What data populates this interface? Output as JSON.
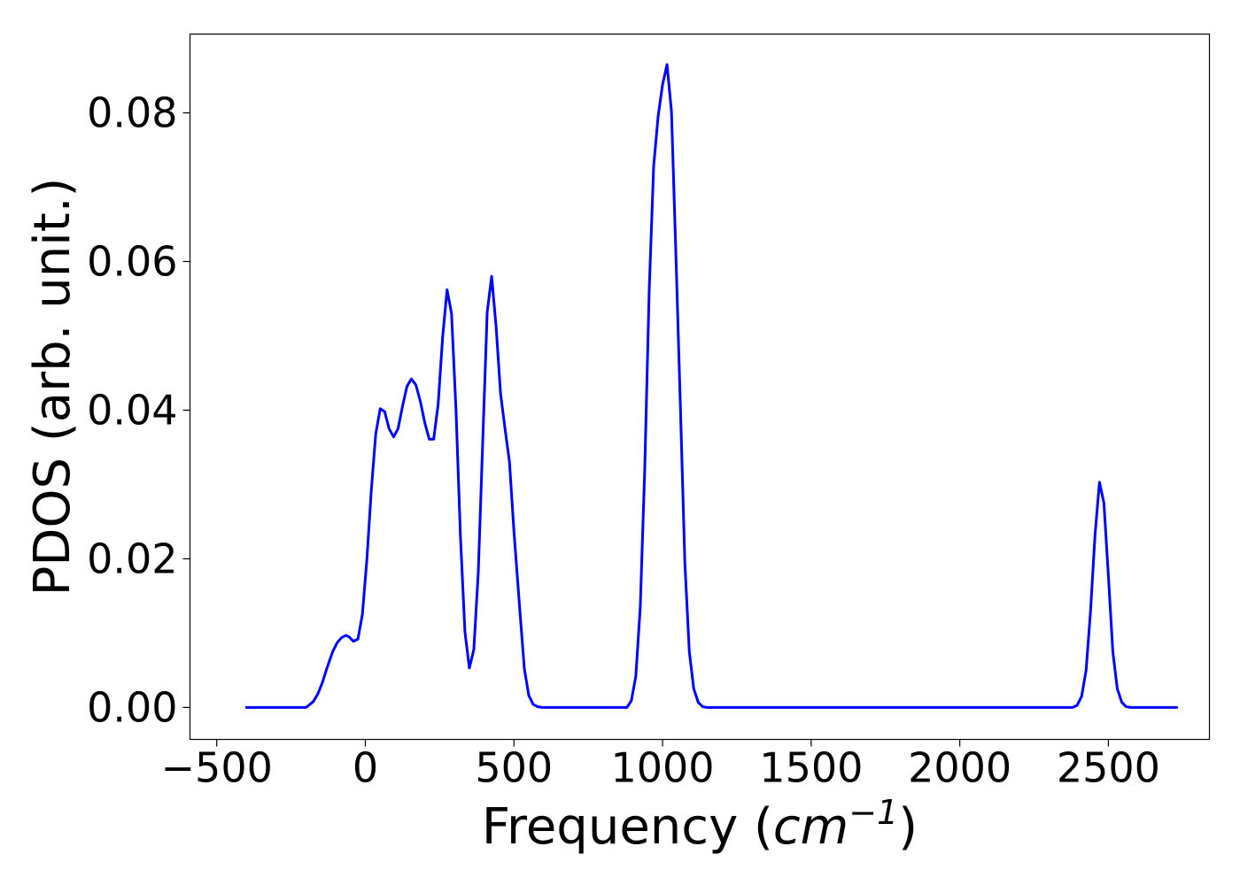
{
  "chart_data": {
    "type": "line",
    "xlabel_base": "Frequency (",
    "xlabel_unit_base": "cm",
    "xlabel_unit_exp": "−1",
    "xlabel_close": ")",
    "ylabel": "PDOS (arb. unit.)",
    "xlim": [
      -590,
      2840
    ],
    "ylim": [
      -0.0043,
      0.0906
    ],
    "x_ticks": [
      -500,
      0,
      500,
      1000,
      1500,
      2000,
      2500
    ],
    "x_tick_labels": [
      "−500",
      "0",
      "500",
      "1000",
      "1500",
      "2000",
      "2500"
    ],
    "y_ticks": [
      0.0,
      0.02,
      0.04,
      0.06,
      0.08
    ],
    "y_tick_labels": [
      "0.00",
      "0.02",
      "0.04",
      "0.06",
      "0.08"
    ],
    "grid": false,
    "line_color": "#0000ff",
    "series": [
      {
        "x": [
          -400,
          -200,
          -190,
          -175,
          -160,
          -145,
          -130,
          -110,
          -95,
          -80,
          -65,
          -55,
          -40,
          -25,
          -10,
          5,
          20,
          35,
          50,
          65,
          80,
          95,
          110,
          125,
          140,
          155,
          170,
          185,
          200,
          215,
          230,
          245,
          260,
          275,
          290,
          305,
          320,
          335,
          350,
          365,
          380,
          395,
          410,
          425,
          440,
          455,
          470,
          485,
          500,
          520,
          535,
          550,
          565,
          580,
          595,
          610,
          625,
          880,
          895,
          910,
          925,
          940,
          955,
          970,
          985,
          1000,
          1015,
          1030,
          1045,
          1060,
          1075,
          1090,
          1105,
          1120,
          1135,
          1150,
          1165,
          2380,
          2395,
          2410,
          2425,
          2440,
          2455,
          2470,
          2485,
          2500,
          2515,
          2530,
          2545,
          2560,
          2575,
          2730
        ],
        "y": [
          0.0,
          0.0,
          0.0003,
          0.0008,
          0.0018,
          0.0033,
          0.0052,
          0.0075,
          0.0087,
          0.0094,
          0.0097,
          0.0095,
          0.0089,
          0.0092,
          0.0125,
          0.0198,
          0.0292,
          0.0368,
          0.0402,
          0.0398,
          0.0375,
          0.0364,
          0.0375,
          0.0405,
          0.0432,
          0.0442,
          0.0434,
          0.0412,
          0.0383,
          0.0361,
          0.0361,
          0.0408,
          0.0498,
          0.0562,
          0.053,
          0.0401,
          0.023,
          0.0102,
          0.0053,
          0.0078,
          0.0182,
          0.0358,
          0.0532,
          0.058,
          0.0512,
          0.0422,
          0.0375,
          0.033,
          0.0237,
          0.013,
          0.0052,
          0.0016,
          0.0004,
          0.0001,
          0.0,
          0.0,
          0.0,
          0.0,
          0.0009,
          0.0042,
          0.0135,
          0.032,
          0.056,
          0.0728,
          0.0795,
          0.0838,
          0.0865,
          0.0802,
          0.0608,
          0.0405,
          0.0195,
          0.0075,
          0.0025,
          0.0007,
          0.0001,
          0.0,
          0.0,
          0.0,
          0.0003,
          0.0015,
          0.005,
          0.013,
          0.0232,
          0.0303,
          0.0275,
          0.0177,
          0.0075,
          0.0025,
          0.0007,
          0.0001,
          0.0,
          0.0
        ]
      }
    ]
  }
}
